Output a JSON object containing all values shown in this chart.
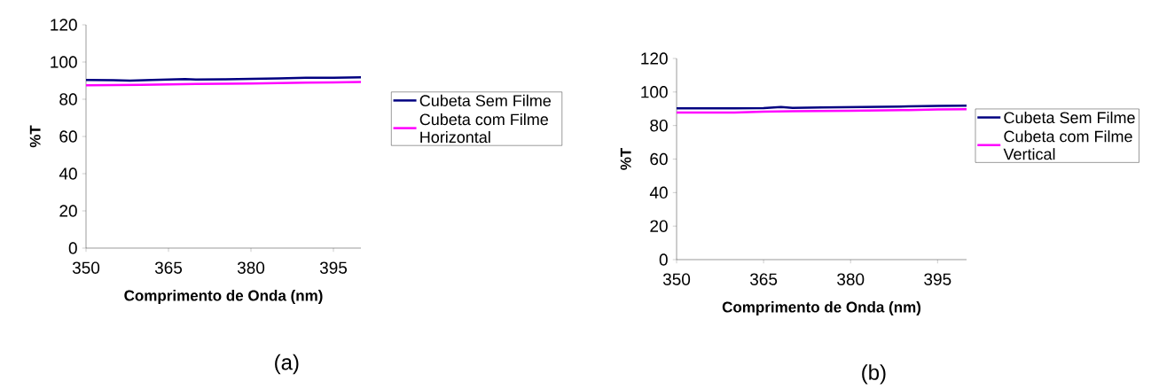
{
  "chart_data": [
    {
      "type": "line",
      "xlabel": "Comprimento de Onda (nm)",
      "ylabel": "%T",
      "annotations": [
        "(a)"
      ],
      "xlim": [
        350,
        400
      ],
      "ylim": [
        0,
        120
      ],
      "xticks": [
        350,
        365,
        380,
        395
      ],
      "yticks": [
        0,
        20,
        40,
        60,
        80,
        100,
        120
      ],
      "legend": "right",
      "series": [
        {
          "name": "Cubeta Sem Filme",
          "color": "#000080",
          "x": [
            350,
            355,
            358,
            362,
            368,
            370,
            375,
            380,
            385,
            390,
            395,
            400
          ],
          "values": [
            90.3,
            90.2,
            90.0,
            90.3,
            90.8,
            90.6,
            90.7,
            91.0,
            91.2,
            91.5,
            91.6,
            91.8
          ]
        },
        {
          "name": "Cubeta com Filme Horizontal",
          "color": "#ff00ff",
          "x": [
            350,
            355,
            360,
            365,
            370,
            375,
            380,
            385,
            390,
            395,
            400
          ],
          "values": [
            87.5,
            87.6,
            87.7,
            88.0,
            88.2,
            88.3,
            88.5,
            88.7,
            88.9,
            89.1,
            89.3
          ]
        }
      ]
    },
    {
      "type": "line",
      "xlabel": "Comprimento de Onda (nm)",
      "ylabel": "%T",
      "annotations": [
        "(b)"
      ],
      "xlim": [
        350,
        400
      ],
      "ylim": [
        0,
        120
      ],
      "xticks": [
        350,
        365,
        380,
        395
      ],
      "yticks": [
        0,
        20,
        40,
        60,
        80,
        100,
        120
      ],
      "legend": "right",
      "series": [
        {
          "name": "Cubeta Sem Filme",
          "color": "#000080",
          "x": [
            350,
            360,
            365,
            368,
            370,
            375,
            380,
            390,
            395,
            400
          ],
          "values": [
            90.2,
            90.2,
            90.4,
            91.0,
            90.5,
            90.8,
            91.0,
            91.4,
            91.7,
            91.8
          ]
        },
        {
          "name": "Cubeta com Filme Vertical",
          "color": "#ff00ff",
          "x": [
            350,
            360,
            365,
            370,
            380,
            390,
            395,
            400
          ],
          "values": [
            87.8,
            87.8,
            88.3,
            88.5,
            88.8,
            89.2,
            89.6,
            89.7
          ]
        }
      ]
    }
  ]
}
